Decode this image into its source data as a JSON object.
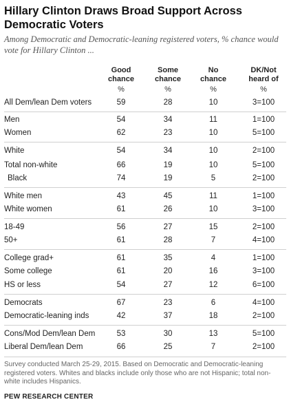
{
  "title": "Hillary Clinton Draws Broad Support Across Democratic Voters",
  "subtitle": "Among Democratic and Democratic-leaning registered voters, % chance would vote for Hillary Clinton ...",
  "columns": [
    {
      "label": "Good chance",
      "unit": "%"
    },
    {
      "label": "Some chance",
      "unit": "%"
    },
    {
      "label": "No chance",
      "unit": "%"
    },
    {
      "label": "DK/Not heard of",
      "unit": "%"
    }
  ],
  "rows": [
    {
      "label": "All Dem/lean Dem voters",
      "values": [
        "59",
        "28",
        "10",
        "3=100"
      ]
    },
    {
      "label": "Men",
      "values": [
        "54",
        "34",
        "11",
        "1=100"
      ]
    },
    {
      "label": "Women",
      "values": [
        "62",
        "23",
        "10",
        "5=100"
      ]
    },
    {
      "label": "White",
      "values": [
        "54",
        "34",
        "10",
        "2=100"
      ]
    },
    {
      "label": "Total non-white",
      "values": [
        "66",
        "19",
        "10",
        "5=100"
      ]
    },
    {
      "label": "Black",
      "values": [
        "74",
        "19",
        "5",
        "2=100"
      ]
    },
    {
      "label": "White men",
      "values": [
        "43",
        "45",
        "11",
        "1=100"
      ]
    },
    {
      "label": "White women",
      "values": [
        "61",
        "26",
        "10",
        "3=100"
      ]
    },
    {
      "label": "18-49",
      "values": [
        "56",
        "27",
        "15",
        "2=100"
      ]
    },
    {
      "label": "50+",
      "values": [
        "61",
        "28",
        "7",
        "4=100"
      ]
    },
    {
      "label": "College grad+",
      "values": [
        "61",
        "35",
        "4",
        "1=100"
      ]
    },
    {
      "label": "Some college",
      "values": [
        "61",
        "20",
        "16",
        "3=100"
      ]
    },
    {
      "label": "HS or less",
      "values": [
        "54",
        "27",
        "12",
        "6=100"
      ]
    },
    {
      "label": "Democrats",
      "values": [
        "67",
        "23",
        "6",
        "4=100"
      ]
    },
    {
      "label": "Democratic-leaning inds",
      "values": [
        "42",
        "37",
        "18",
        "2=100"
      ]
    },
    {
      "label": "Cons/Mod Dem/lean Dem",
      "values": [
        "53",
        "30",
        "13",
        "5=100"
      ]
    },
    {
      "label": "Liberal Dem/lean Dem",
      "values": [
        "66",
        "25",
        "7",
        "2=100"
      ]
    }
  ],
  "note": "Survey conducted March 25-29, 2015. Based on Democratic and Democratic-leaning registered voters. Whites and blacks include only those who are not Hispanic; total non-white includes Hispanics.",
  "source": "PEW RESEARCH CENTER"
}
